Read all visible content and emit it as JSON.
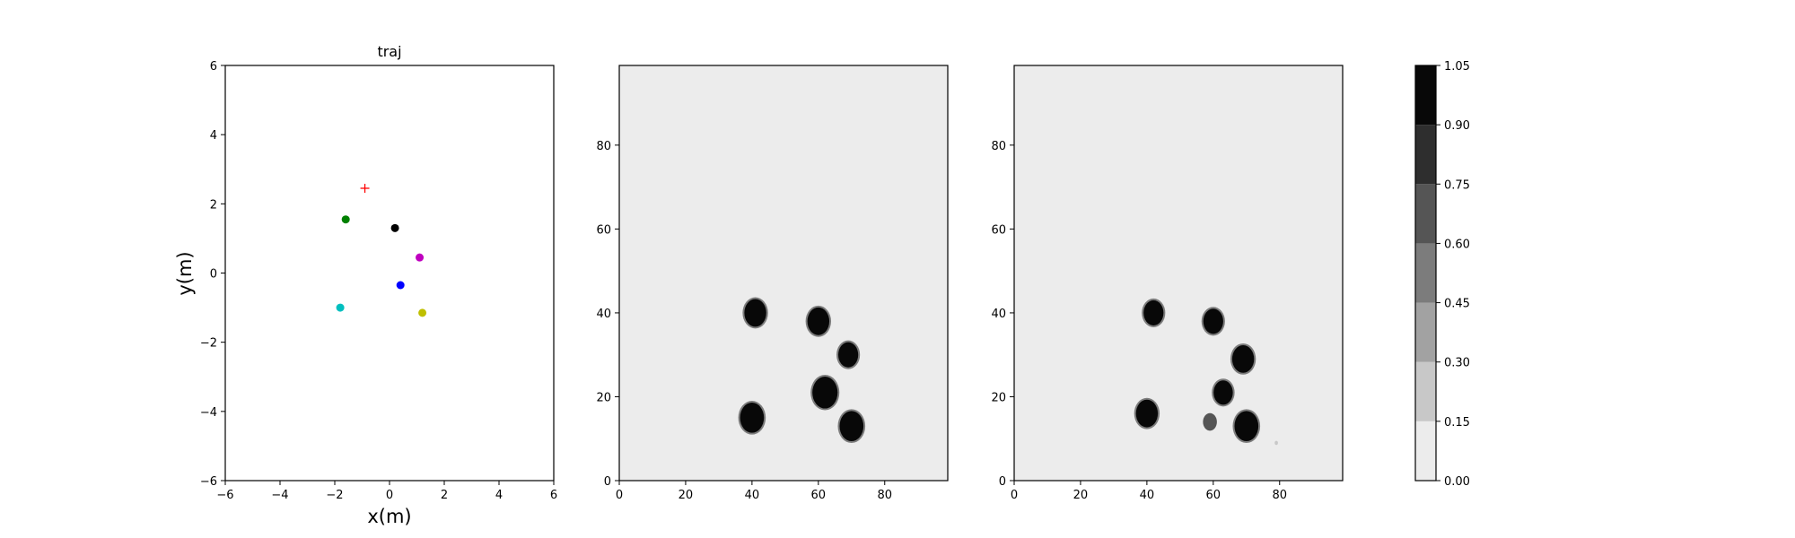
{
  "chart_data": [
    {
      "type": "scatter",
      "title": "traj",
      "xlabel": "x(m)",
      "ylabel": "y(m)",
      "xlim": [
        -6,
        6
      ],
      "ylim": [
        -6,
        6
      ],
      "xticks": [
        -6,
        -4,
        -2,
        0,
        2,
        4,
        6
      ],
      "yticks": [
        -6,
        -4,
        -2,
        0,
        2,
        4,
        6
      ],
      "goal_marker": {
        "marker": "+",
        "color": "#ff0000",
        "x": -0.9,
        "y": 2.45
      },
      "points": [
        {
          "x": -1.6,
          "y": 1.55,
          "color": "#008000"
        },
        {
          "x": 0.2,
          "y": 1.3,
          "color": "#000000"
        },
        {
          "x": 1.1,
          "y": 0.45,
          "color": "#bf00bf"
        },
        {
          "x": 0.4,
          "y": -0.35,
          "color": "#0000ff"
        },
        {
          "x": -1.8,
          "y": -1.0,
          "color": "#00bfbf"
        },
        {
          "x": 1.2,
          "y": -1.15,
          "color": "#bfbf00"
        }
      ]
    },
    {
      "type": "heatmap",
      "title": "",
      "xlim": [
        0,
        99
      ],
      "ylim": [
        0,
        99
      ],
      "xticks": [
        0,
        20,
        40,
        60,
        80
      ],
      "yticks": [
        0,
        20,
        40,
        60,
        80
      ],
      "background_value": 0.0,
      "blobs": [
        {
          "x": 41,
          "y": 40,
          "r": 3.3,
          "value": 1.0
        },
        {
          "x": 60,
          "y": 38,
          "r": 3.3,
          "value": 1.0
        },
        {
          "x": 69,
          "y": 30,
          "r": 3.0,
          "value": 1.0
        },
        {
          "x": 62,
          "y": 21,
          "r": 3.8,
          "value": 1.0
        },
        {
          "x": 40,
          "y": 15,
          "r": 3.6,
          "value": 1.0
        },
        {
          "x": 70,
          "y": 13,
          "r": 3.6,
          "value": 1.0
        }
      ]
    },
    {
      "type": "heatmap",
      "title": "",
      "xlim": [
        0,
        99
      ],
      "ylim": [
        0,
        99
      ],
      "xticks": [
        0,
        20,
        40,
        60,
        80
      ],
      "yticks": [
        0,
        20,
        40,
        60,
        80
      ],
      "background_value": 0.0,
      "blobs": [
        {
          "x": 42,
          "y": 40,
          "r": 3.0,
          "value": 0.98
        },
        {
          "x": 60,
          "y": 38,
          "r": 3.0,
          "value": 0.98
        },
        {
          "x": 69,
          "y": 29,
          "r": 3.3,
          "value": 0.98
        },
        {
          "x": 63,
          "y": 21,
          "r": 2.9,
          "value": 0.98
        },
        {
          "x": 40,
          "y": 16,
          "r": 3.3,
          "value": 0.98
        },
        {
          "x": 70,
          "y": 13,
          "r": 3.6,
          "value": 0.98
        },
        {
          "x": 59,
          "y": 14,
          "r": 2.1,
          "value": 0.6
        },
        {
          "x": 79,
          "y": 9,
          "r": 0.5,
          "value": 0.2
        }
      ]
    },
    {
      "type": "colorbar",
      "levels": [
        0.0,
        0.15,
        0.3,
        0.45,
        0.6,
        0.75,
        0.9,
        1.05
      ],
      "tick_labels": [
        "0.00",
        "0.15",
        "0.30",
        "0.45",
        "0.60",
        "0.75",
        "0.90",
        "1.05"
      ],
      "colors": [
        "#ececec",
        "#c8c8c8",
        "#a2a2a2",
        "#7c7c7c",
        "#555555",
        "#2e2e2e",
        "#080808"
      ]
    }
  ]
}
